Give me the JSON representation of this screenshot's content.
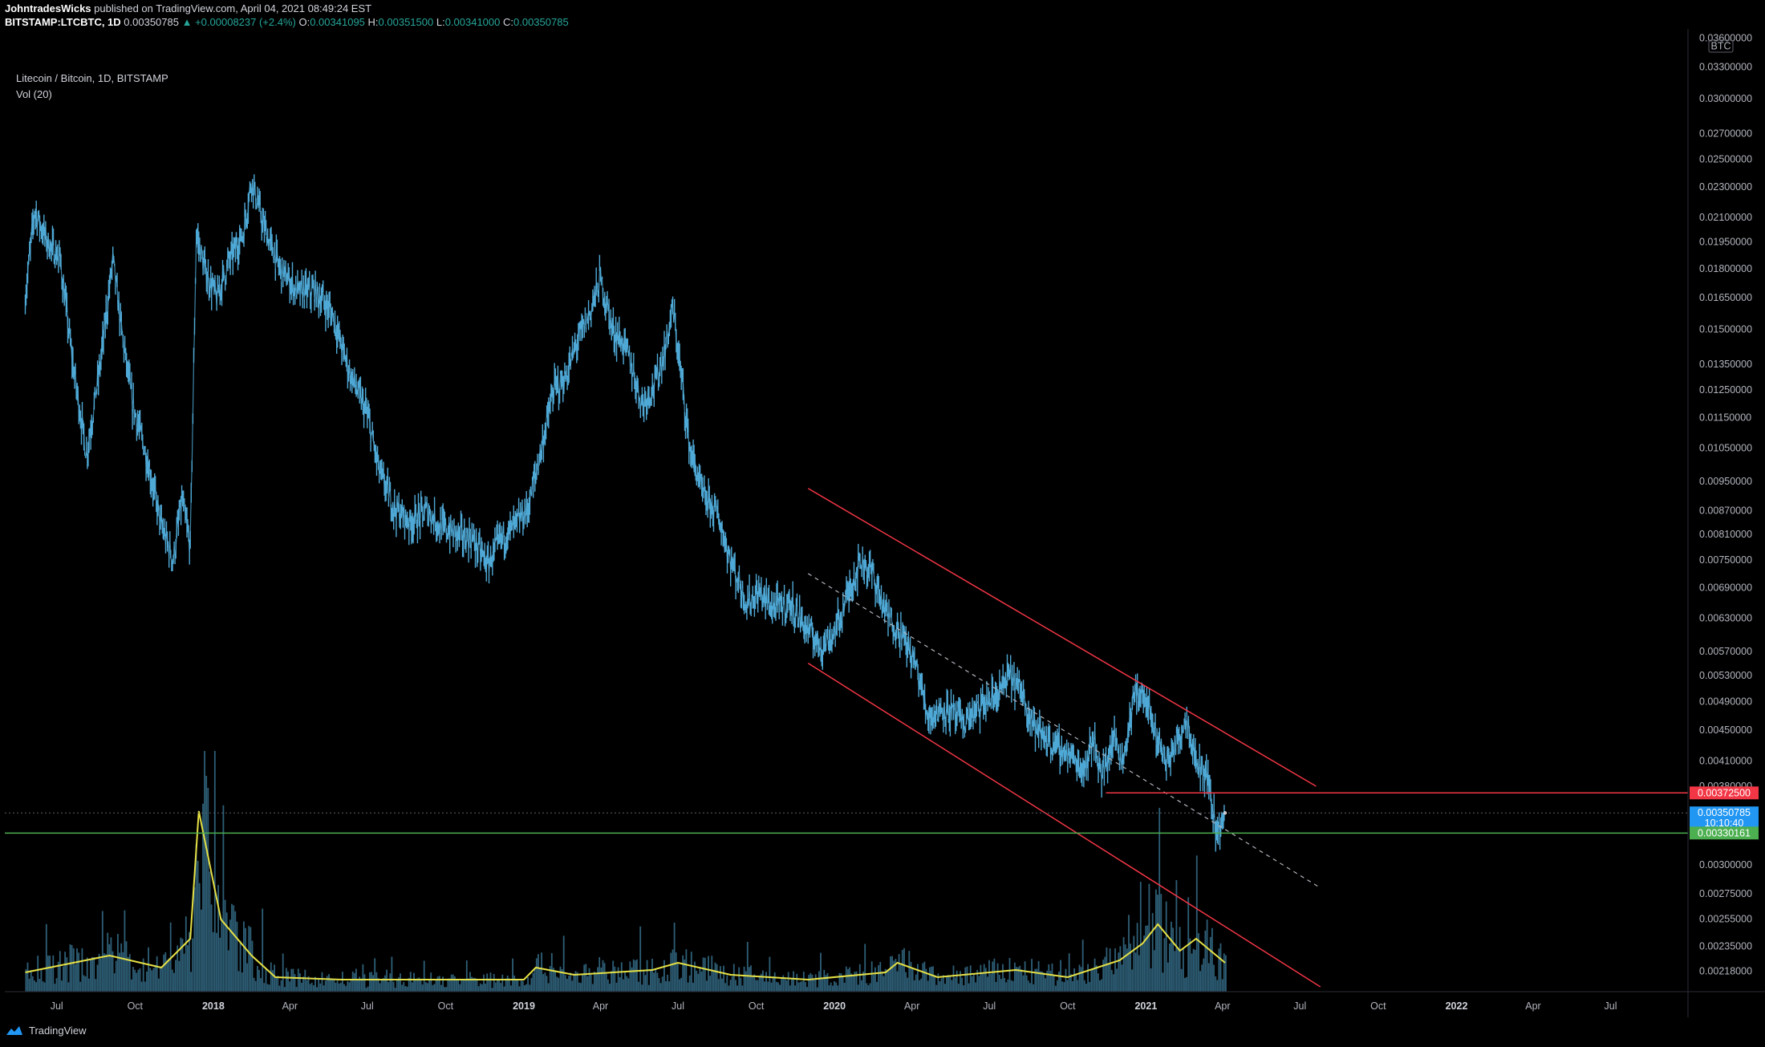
{
  "header": {
    "publisher": "JohntradesWicks",
    "published_text": "published on TradingView.com, April 04, 2021 08:49:24 EST",
    "symbol": "BITSTAMP:LTCBTC, 1D",
    "last": "0.00350785",
    "change": "▲ +0.00008237 (+2.4%)",
    "o_label": "O:",
    "o_value": "0.00341095",
    "h_label": "H:",
    "h_value": "0.00351500",
    "l_label": "L:",
    "l_value": "0.00341000",
    "c_label": "C:",
    "c_value": "0.00350785"
  },
  "legend": {
    "title": "Litecoin / Bitcoin, 1D, BITSTAMP",
    "volume": "Vol (20)"
  },
  "footer": {
    "brand": "TradingView"
  },
  "colors": {
    "background": "#000000",
    "candle": "#4fa9d6",
    "volume": "#2e5f77",
    "volume_ma": "#e6e146",
    "channel": "#f23645",
    "support": "#4caf50",
    "price_label": "#2196f3"
  },
  "chart_data": {
    "type": "line",
    "scale": "log",
    "ylim": [
      0.00205,
      0.037
    ],
    "currency_label": "BTC",
    "y_ticks": [
      "0.03600000",
      "0.03300000",
      "0.03000000",
      "0.02700000",
      "0.02500000",
      "0.02300000",
      "0.02100000",
      "0.01950000",
      "0.01800000",
      "0.01650000",
      "0.01500000",
      "0.01350000",
      "0.01250000",
      "0.01150000",
      "0.01050000",
      "0.00950000",
      "0.00870000",
      "0.00810000",
      "0.00750000",
      "0.00690000",
      "0.00630000",
      "0.00570000",
      "0.00530000",
      "0.00490000",
      "0.00450000",
      "0.00410000",
      "0.00380000",
      "0.00300000",
      "0.00275000",
      "0.00255000",
      "0.00235000",
      "0.00218000"
    ],
    "x_ticks": [
      {
        "label": "Jul",
        "date": "2017-07-01",
        "bold": false
      },
      {
        "label": "Oct",
        "date": "2017-10-01",
        "bold": false
      },
      {
        "label": "2018",
        "date": "2018-01-01",
        "bold": true
      },
      {
        "label": "Apr",
        "date": "2018-04-01",
        "bold": false
      },
      {
        "label": "Jul",
        "date": "2018-07-01",
        "bold": false
      },
      {
        "label": "Oct",
        "date": "2018-10-01",
        "bold": false
      },
      {
        "label": "2019",
        "date": "2019-01-01",
        "bold": true
      },
      {
        "label": "Apr",
        "date": "2019-04-01",
        "bold": false
      },
      {
        "label": "Jul",
        "date": "2019-07-01",
        "bold": false
      },
      {
        "label": "Oct",
        "date": "2019-10-01",
        "bold": false
      },
      {
        "label": "2020",
        "date": "2020-01-01",
        "bold": true
      },
      {
        "label": "Apr",
        "date": "2020-04-01",
        "bold": false
      },
      {
        "label": "Jul",
        "date": "2020-07-01",
        "bold": false
      },
      {
        "label": "Oct",
        "date": "2020-10-01",
        "bold": false
      },
      {
        "label": "2021",
        "date": "2021-01-01",
        "bold": true
      },
      {
        "label": "Apr",
        "date": "2021-04-01",
        "bold": false
      },
      {
        "label": "Jul",
        "date": "2021-07-01",
        "bold": false
      },
      {
        "label": "Oct",
        "date": "2021-10-01",
        "bold": false
      },
      {
        "label": "2022",
        "date": "2022-01-01",
        "bold": true
      },
      {
        "label": "Apr",
        "date": "2022-04-01",
        "bold": false
      },
      {
        "label": "Jul",
        "date": "2022-07-01",
        "bold": false
      }
    ],
    "series": [
      {
        "values": [
          [
            "2017-05-25",
            0.0165
          ],
          [
            "2017-06-05",
            0.0215
          ],
          [
            "2017-06-20",
            0.0195
          ],
          [
            "2017-07-05",
            0.0185
          ],
          [
            "2017-07-20",
            0.0135
          ],
          [
            "2017-08-05",
            0.0103
          ],
          [
            "2017-08-20",
            0.0132
          ],
          [
            "2017-09-05",
            0.0185
          ],
          [
            "2017-09-15",
            0.015
          ],
          [
            "2017-09-28",
            0.012
          ],
          [
            "2017-10-15",
            0.0102
          ],
          [
            "2017-11-01",
            0.0083
          ],
          [
            "2017-11-15",
            0.0075
          ],
          [
            "2017-11-25",
            0.009
          ],
          [
            "2017-12-05",
            0.0078
          ],
          [
            "2017-12-12",
            0.02
          ],
          [
            "2017-12-22",
            0.018
          ],
          [
            "2018-01-05",
            0.0165
          ],
          [
            "2018-01-20",
            0.0185
          ],
          [
            "2018-02-05",
            0.02
          ],
          [
            "2018-02-15",
            0.0235
          ],
          [
            "2018-03-01",
            0.0205
          ],
          [
            "2018-03-20",
            0.018
          ],
          [
            "2018-04-10",
            0.0168
          ],
          [
            "2018-05-01",
            0.0168
          ],
          [
            "2018-05-20",
            0.0158
          ],
          [
            "2018-06-10",
            0.0132
          ],
          [
            "2018-07-01",
            0.0116
          ],
          [
            "2018-07-15",
            0.0098
          ],
          [
            "2018-08-01",
            0.0088
          ],
          [
            "2018-08-20",
            0.0084
          ],
          [
            "2018-09-10",
            0.0087
          ],
          [
            "2018-09-25",
            0.0083
          ],
          [
            "2018-10-15",
            0.0081
          ],
          [
            "2018-11-01",
            0.008
          ],
          [
            "2018-11-20",
            0.0074
          ],
          [
            "2018-12-05",
            0.008
          ],
          [
            "2018-12-20",
            0.0083
          ],
          [
            "2019-01-05",
            0.0087
          ],
          [
            "2019-01-20",
            0.0103
          ],
          [
            "2019-02-05",
            0.0125
          ],
          [
            "2019-02-20",
            0.013
          ],
          [
            "2019-03-05",
            0.0145
          ],
          [
            "2019-03-20",
            0.0158
          ],
          [
            "2019-04-01",
            0.0175
          ],
          [
            "2019-04-15",
            0.015
          ],
          [
            "2019-05-01",
            0.0142
          ],
          [
            "2019-05-20",
            0.012
          ],
          [
            "2019-06-05",
            0.0128
          ],
          [
            "2019-06-15",
            0.014
          ],
          [
            "2019-06-25",
            0.016
          ],
          [
            "2019-07-05",
            0.013
          ],
          [
            "2019-07-15",
            0.0105
          ],
          [
            "2019-08-01",
            0.009
          ],
          [
            "2019-08-15",
            0.0087
          ],
          [
            "2019-09-01",
            0.0075
          ],
          [
            "2019-09-20",
            0.0066
          ],
          [
            "2019-10-05",
            0.0068
          ],
          [
            "2019-10-20",
            0.0065
          ],
          [
            "2019-11-10",
            0.0066
          ],
          [
            "2019-11-25",
            0.0062
          ],
          [
            "2019-12-15",
            0.0058
          ],
          [
            "2020-01-01",
            0.006
          ],
          [
            "2020-01-15",
            0.0067
          ],
          [
            "2020-02-01",
            0.0075
          ],
          [
            "2020-02-15",
            0.0072
          ],
          [
            "2020-03-01",
            0.0064
          ],
          [
            "2020-03-20",
            0.006
          ],
          [
            "2020-04-05",
            0.0055
          ],
          [
            "2020-04-20",
            0.0047
          ],
          [
            "2020-05-10",
            0.0048
          ],
          [
            "2020-06-01",
            0.0046
          ],
          [
            "2020-06-20",
            0.0048
          ],
          [
            "2020-07-10",
            0.005
          ],
          [
            "2020-07-25",
            0.0053
          ],
          [
            "2020-08-10",
            0.005
          ],
          [
            "2020-08-25",
            0.0045
          ],
          [
            "2020-09-15",
            0.0043
          ],
          [
            "2020-10-01",
            0.0042
          ],
          [
            "2020-10-20",
            0.004
          ],
          [
            "2020-11-01",
            0.0044
          ],
          [
            "2020-11-10",
            0.0039
          ],
          [
            "2020-11-25",
            0.0044
          ],
          [
            "2020-12-05",
            0.0041
          ],
          [
            "2020-12-20",
            0.0051
          ],
          [
            "2021-01-01",
            0.0049
          ],
          [
            "2021-01-10",
            0.0045
          ],
          [
            "2021-01-25",
            0.0041
          ],
          [
            "2021-02-05",
            0.0043
          ],
          [
            "2021-02-18",
            0.0047
          ],
          [
            "2021-03-01",
            0.0041
          ],
          [
            "2021-03-15",
            0.0039
          ],
          [
            "2021-03-25",
            0.0033
          ],
          [
            "2021-04-04",
            0.00350785
          ]
        ]
      }
    ],
    "volume_note": "Vol (20) histogram with 20-period moving average",
    "volume_ma": [
      [
        "2017-05-25",
        0.08
      ],
      [
        "2017-09-01",
        0.15
      ],
      [
        "2017-11-01",
        0.1
      ],
      [
        "2017-12-05",
        0.22
      ],
      [
        "2017-12-15",
        0.75
      ],
      [
        "2018-01-10",
        0.3
      ],
      [
        "2018-02-15",
        0.15
      ],
      [
        "2018-03-15",
        0.06
      ],
      [
        "2018-06-01",
        0.05
      ],
      [
        "2018-09-01",
        0.05
      ],
      [
        "2019-01-01",
        0.05
      ],
      [
        "2019-01-15",
        0.1
      ],
      [
        "2019-03-01",
        0.07
      ],
      [
        "2019-06-01",
        0.09
      ],
      [
        "2019-07-01",
        0.12
      ],
      [
        "2019-09-01",
        0.07
      ],
      [
        "2019-12-01",
        0.05
      ],
      [
        "2020-03-01",
        0.08
      ],
      [
        "2020-03-15",
        0.12
      ],
      [
        "2020-05-01",
        0.06
      ],
      [
        "2020-08-01",
        0.09
      ],
      [
        "2020-10-01",
        0.06
      ],
      [
        "2020-12-01",
        0.13
      ],
      [
        "2020-12-28",
        0.2
      ],
      [
        "2021-01-15",
        0.28
      ],
      [
        "2021-02-10",
        0.17
      ],
      [
        "2021-03-01",
        0.22
      ],
      [
        "2021-04-04",
        0.12
      ]
    ],
    "annotations": {
      "channel_upper": {
        "from": [
          "2019-12-01",
          0.0093
        ],
        "to": [
          "2021-07-20",
          0.0038
        ]
      },
      "channel_lower": {
        "from": [
          "2019-12-01",
          0.0055
        ],
        "to": [
          "2021-07-25",
          0.00208
        ]
      },
      "midline": {
        "from": [
          "2019-12-01",
          0.0072
        ],
        "to": [
          "2021-07-25",
          0.0028
        ]
      },
      "resistance": {
        "from": [
          "2020-11-15",
          0.003725
        ],
        "label": "0.00372500",
        "color": "#f23645"
      },
      "support": {
        "level": 0.00330161,
        "label": "0.00330161",
        "color": "#4caf50"
      },
      "last_price": {
        "level": 0.00350785,
        "label": "0.00350785",
        "countdown": "10:10:40"
      }
    }
  }
}
